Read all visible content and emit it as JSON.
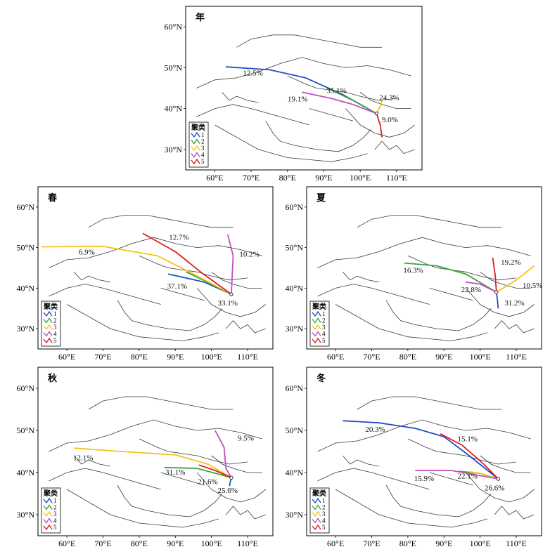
{
  "colors": {
    "cluster1": "#1f4fc4",
    "cluster2": "#3aa53a",
    "cluster3": "#f2c418",
    "cluster4": "#c24fc2",
    "cluster5": "#e01c1c"
  },
  "legend": {
    "title": "聚类",
    "entries": [
      "1",
      "2",
      "3",
      "4",
      "5"
    ]
  },
  "chart_data": [
    {
      "type": "line",
      "title": "年",
      "x_ticks": [
        "60°E",
        "70°E",
        "80°E",
        "90°E",
        "100°E",
        "110°E"
      ],
      "y_ticks": [
        "30°N",
        "40°N",
        "50°N",
        "60°N"
      ],
      "xlim": [
        52,
        117
      ],
      "ylim": [
        25,
        65
      ],
      "origin": [
        104.5,
        38.8
      ],
      "series": [
        {
          "name": "1",
          "label": "12.5%",
          "label_pos": [
            70.5,
            48.5
          ],
          "points": [
            [
              63,
              50.2
            ],
            [
              75,
              49.5
            ],
            [
              85,
              47.5
            ],
            [
              95,
              43.5
            ],
            [
              104.5,
              38.8
            ]
          ]
        },
        {
          "name": "2",
          "label": "35.1%",
          "label_pos": [
            93.5,
            44.2
          ],
          "points": [
            [
              91,
              45
            ],
            [
              98,
              42
            ],
            [
              104.5,
              38.8
            ]
          ]
        },
        {
          "name": "3",
          "label": "24.3%",
          "label_pos": [
            108,
            42.5
          ],
          "points": [
            [
              106,
              42.2
            ],
            [
              105.5,
              40.5
            ],
            [
              104.5,
              38.8
            ]
          ]
        },
        {
          "name": "4",
          "label": "19.1%",
          "label_pos": [
            82.8,
            42.2
          ],
          "points": [
            [
              84,
              44
            ],
            [
              92,
              42.5
            ],
            [
              98,
              41
            ],
            [
              104.5,
              38.8
            ]
          ]
        },
        {
          "name": "5",
          "label": "9.0%",
          "label_pos": [
            108.2,
            37.1
          ],
          "points": [
            [
              106,
              33
            ],
            [
              105.5,
              36
            ],
            [
              104.5,
              38.8
            ]
          ]
        }
      ]
    },
    {
      "type": "line",
      "title": "春",
      "x_ticks": [
        "60°E",
        "70°E",
        "80°E",
        "90°E",
        "100°E",
        "110°E"
      ],
      "y_ticks": [
        "30°N",
        "40°N",
        "50°N",
        "60°N"
      ],
      "xlim": [
        52,
        117
      ],
      "ylim": [
        25,
        65
      ],
      "origin": [
        105.5,
        38.5
      ],
      "series": [
        {
          "name": "1",
          "label": "37.1%",
          "label_pos": [
            90.5,
            40.3
          ],
          "points": [
            [
              88,
              43.5
            ],
            [
              98,
              41.5
            ],
            [
              105.5,
              38.5
            ]
          ]
        },
        {
          "name": "2",
          "label": "",
          "label_pos": [
            0,
            0
          ],
          "points": [
            [
              93,
              44
            ],
            [
              100,
              41
            ],
            [
              105.5,
              38.5
            ]
          ]
        },
        {
          "name": "3",
          "label": "6.9%",
          "label_pos": [
            65.5,
            48.7
          ],
          "points": [
            [
              53,
              50.2
            ],
            [
              70,
              50.3
            ],
            [
              85,
              48
            ],
            [
              95,
              43.5
            ],
            [
              105.5,
              38.5
            ]
          ]
        },
        {
          "name": "4",
          "label": "10.2%",
          "label_pos": [
            110.5,
            48.2
          ],
          "points": [
            [
              104.5,
              53.2
            ],
            [
              106,
              48
            ],
            [
              105.5,
              38.5
            ]
          ]
        },
        {
          "name": "5",
          "label": "12.7%",
          "label_pos": [
            91,
            52.4
          ],
          "points": [
            [
              81,
              53.5
            ],
            [
              90,
              49
            ],
            [
              97,
              44
            ],
            [
              105.5,
              38.5
            ]
          ]
        }
      ],
      "extra_labels": [
        {
          "text": "33.1%",
          "pos": [
            104.5,
            36.2
          ]
        }
      ]
    },
    {
      "type": "line",
      "title": "夏",
      "x_ticks": [
        "60°E",
        "70°E",
        "80°E",
        "90°E",
        "100°E",
        "110°E"
      ],
      "y_ticks": [
        "30°N",
        "40°N",
        "50°N",
        "60°N"
      ],
      "xlim": [
        52,
        117
      ],
      "ylim": [
        25,
        65
      ],
      "origin": [
        104.5,
        39
      ],
      "series": [
        {
          "name": "1",
          "label": "31.2%",
          "label_pos": [
            109.5,
            36.2
          ],
          "points": [
            [
              105,
              35
            ],
            [
              104.8,
              37
            ],
            [
              104.5,
              39
            ]
          ]
        },
        {
          "name": "2",
          "label": "16.3%",
          "label_pos": [
            81.5,
            44.2
          ],
          "points": [
            [
              79,
              46.2
            ],
            [
              88,
              45.5
            ],
            [
              96,
              43.5
            ],
            [
              104.5,
              39
            ]
          ]
        },
        {
          "name": "3",
          "label": "10.5%",
          "label_pos": [
            114.5,
            40.5
          ],
          "points": [
            [
              115,
              45.5
            ],
            [
              110,
              42
            ],
            [
              104.5,
              39
            ]
          ]
        },
        {
          "name": "4",
          "label": "22.8%",
          "label_pos": [
            97.5,
            39.5
          ],
          "points": [
            [
              96,
              41.5
            ],
            [
              100,
              41
            ],
            [
              104.5,
              39
            ]
          ]
        },
        {
          "name": "5",
          "label": "19.2%",
          "label_pos": [
            108.5,
            46.2
          ],
          "points": [
            [
              103.5,
              47.5
            ],
            [
              104.2,
              43
            ],
            [
              104.5,
              39
            ]
          ]
        }
      ]
    },
    {
      "type": "line",
      "title": "秋",
      "x_ticks": [
        "60°E",
        "70°E",
        "80°E",
        "90°E",
        "100°E",
        "110°E"
      ],
      "y_ticks": [
        "30°N",
        "40°N",
        "50°N",
        "60°N"
      ],
      "xlim": [
        52,
        117
      ],
      "ylim": [
        25,
        65
      ],
      "origin": [
        105.5,
        38.8
      ],
      "series": [
        {
          "name": "1",
          "label": "",
          "label_pos": [
            0,
            0
          ],
          "points": [
            [
              105,
              36.8
            ],
            [
              105.2,
              37.8
            ],
            [
              105.5,
              38.8
            ]
          ]
        },
        {
          "name": "2",
          "label": "31.1%",
          "label_pos": [
            90,
            39.9
          ],
          "points": [
            [
              87,
              41.2
            ],
            [
              96,
              41
            ],
            [
              105.5,
              38.8
            ]
          ]
        },
        {
          "name": "3",
          "label": "12.1%",
          "label_pos": [
            64.5,
            43.3
          ],
          "points": [
            [
              62,
              45.8
            ],
            [
              75,
              45
            ],
            [
              90,
              44.2
            ],
            [
              99,
              42
            ],
            [
              105.5,
              38.8
            ]
          ]
        },
        {
          "name": "4",
          "label": "9.5%",
          "label_pos": [
            109.5,
            48
          ],
          "points": [
            [
              101,
              50
            ],
            [
              103.5,
              46
            ],
            [
              104,
              41
            ],
            [
              105.5,
              38.8
            ]
          ]
        },
        {
          "name": "5",
          "label": "21.6%",
          "label_pos": [
            99,
            37.7
          ],
          "points": [
            [
              96.5,
              41.8
            ],
            [
              101,
              40.5
            ],
            [
              105.5,
              38.8
            ]
          ]
        }
      ],
      "extra_labels": [
        {
          "text": "25.6%",
          "pos": [
            104.5,
            35.6
          ]
        }
      ]
    },
    {
      "type": "line",
      "title": "冬",
      "x_ticks": [
        "60°E",
        "70°E",
        "80°E",
        "90°E",
        "100°E",
        "110°E"
      ],
      "y_ticks": [
        "30°N",
        "40°N",
        "50°N",
        "60°N"
      ],
      "xlim": [
        52,
        117
      ],
      "ylim": [
        25,
        65
      ],
      "origin": [
        105,
        38.5
      ],
      "series": [
        {
          "name": "1",
          "label": "20.3%",
          "label_pos": [
            71,
            50.1
          ],
          "points": [
            [
              62,
              52.3
            ],
            [
              72,
              51.8
            ],
            [
              82,
              50.5
            ],
            [
              90,
              48.5
            ],
            [
              97,
              44
            ],
            [
              105,
              38.5
            ]
          ]
        },
        {
          "name": "2",
          "label": "",
          "label_pos": [
            0,
            0
          ],
          "points": [
            [
              94,
              40.3
            ],
            [
              100,
              39.8
            ],
            [
              105,
              38.5
            ]
          ]
        },
        {
          "name": "3",
          "label": "",
          "label_pos": [
            0,
            0
          ],
          "points": [
            [
              97,
              40.2
            ],
            [
              101,
              39.6
            ],
            [
              105,
              38.5
            ]
          ]
        },
        {
          "name": "4",
          "label": "15.9%",
          "label_pos": [
            84.5,
            38.4
          ],
          "points": [
            [
              82,
              40.5
            ],
            [
              92,
              40.5
            ],
            [
              105,
              38.5
            ]
          ]
        },
        {
          "name": "5",
          "label": "15.1%",
          "label_pos": [
            96.5,
            47.8
          ],
          "points": [
            [
              89,
              49.2
            ],
            [
              95,
              46.5
            ],
            [
              101,
              42
            ],
            [
              105,
              38.5
            ]
          ]
        }
      ],
      "extra_labels": [
        {
          "text": "22.1%",
          "pos": [
            96.5,
            39
          ]
        },
        {
          "text": "26.6%",
          "pos": [
            104,
            36.2
          ]
        }
      ]
    }
  ]
}
